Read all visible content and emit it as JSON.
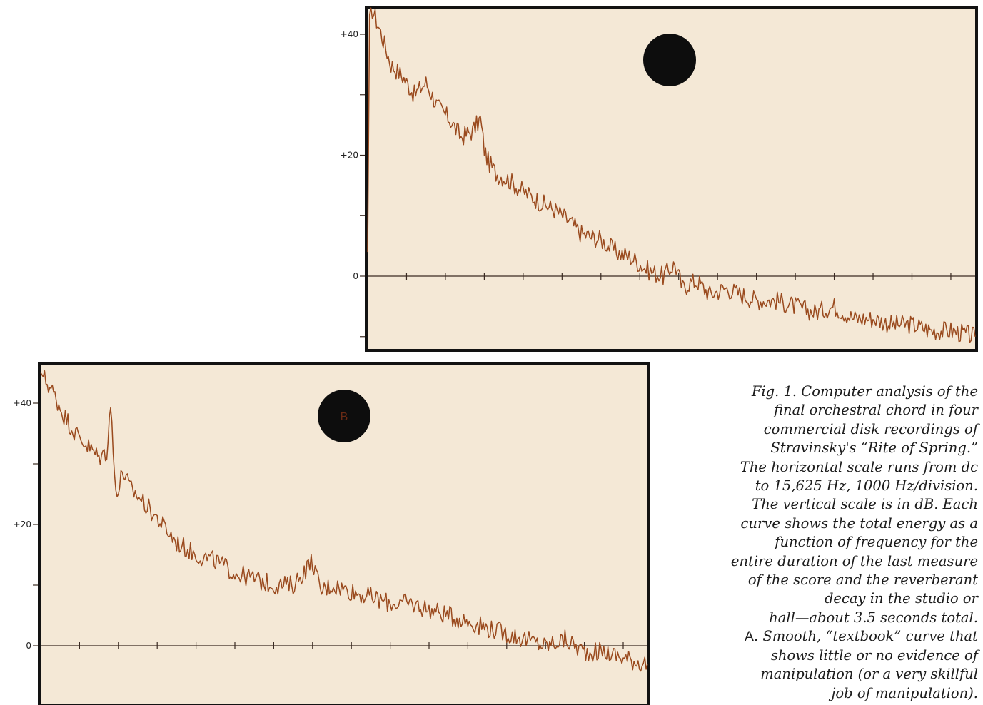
{
  "caption": {
    "lines": [
      "Fig. 1. Computer analysis of the",
      "final orchestral chord in four",
      "commercial disk recordings of",
      "Stravinsky's “Rite of Spring.”",
      "The horizontal scale runs from dc",
      "to 15,625 Hz, 1000 Hz/division.",
      "The vertical scale is in dB. Each",
      "curve shows the total energy as a",
      "function of frequency for the",
      "entire duration of the last measure",
      "of the score and the reverberant",
      "decay in the studio or",
      "hall—about 3.5 seconds total."
    ],
    "item_letter": "A",
    "item_text": ". Smooth, “textbook” curve that",
    "item_lines": [
      "shows little or no evidence of",
      "manipulation (or a very skillful",
      "job of manipulation)."
    ]
  },
  "colors": {
    "paper": "#f4e8d6",
    "trace": "#9a4a1e",
    "axis": "#3a2a22",
    "frame": "#121212",
    "disc": "#0d0d0d"
  },
  "chart_data": [
    {
      "type": "line",
      "badge": "",
      "xlabel": "",
      "ylabel": "",
      "xlim": [
        0,
        15625
      ],
      "ylim": [
        -12,
        45
      ],
      "x_tick_step": 1000,
      "y_ticks": [
        {
          "value": 40,
          "label": "+40"
        },
        {
          "value": 30,
          "label": ""
        },
        {
          "value": 20,
          "label": "+20"
        },
        {
          "value": 10,
          "label": ""
        },
        {
          "value": 0,
          "label": "0"
        },
        {
          "value": -10,
          "label": ""
        }
      ],
      "series": [
        {
          "x": [
            0,
            50,
            120,
            300,
            600,
            900,
            1200,
            1500,
            1800,
            2100,
            2400,
            2700,
            2900,
            3000,
            3100,
            3300,
            3600,
            4000,
            4500,
            4800,
            5200,
            5500,
            6000,
            6400,
            6800,
            7200,
            7600,
            7900,
            8100,
            8300,
            8500,
            8800,
            9200,
            9600,
            10000,
            10500,
            11000,
            11500,
            12000,
            12500,
            13000,
            13500,
            14000,
            14500,
            15000,
            15625
          ],
          "y": [
            4,
            42,
            44,
            41,
            35,
            33,
            30,
            32,
            28,
            26,
            23,
            24,
            26,
            21,
            19,
            17,
            16,
            14,
            12,
            11,
            9,
            7,
            6,
            4,
            3,
            1,
            0,
            2,
            -2,
            -1,
            -1,
            -3,
            -2,
            -3,
            -4,
            -4,
            -5,
            -6,
            -5,
            -7,
            -7,
            -8,
            -8,
            -9,
            -9,
            -10
          ]
        }
      ]
    },
    {
      "type": "line",
      "badge": "B",
      "xlabel": "",
      "ylabel": "",
      "xlim": [
        0,
        15625
      ],
      "ylim": [
        -12,
        45
      ],
      "x_tick_step": 1000,
      "y_ticks": [
        {
          "value": 40,
          "label": "+40"
        },
        {
          "value": 30,
          "label": ""
        },
        {
          "value": 20,
          "label": "+20"
        },
        {
          "value": 10,
          "label": ""
        },
        {
          "value": 0,
          "label": "0"
        },
        {
          "value": -10,
          "label": ""
        }
      ],
      "series": [
        {
          "x": [
            0,
            100,
            300,
            600,
            900,
            1200,
            1500,
            1700,
            1800,
            1900,
            2000,
            2100,
            2300,
            2600,
            3000,
            3500,
            4000,
            4500,
            5000,
            5500,
            6000,
            6500,
            7000,
            7200,
            7500,
            8000,
            8500,
            9000,
            9500,
            10000,
            10500,
            11000,
            11500,
            12000,
            12500,
            13000,
            13500,
            14000,
            14500,
            15000,
            15625
          ],
          "y": [
            45,
            44,
            42,
            38,
            35,
            33,
            31,
            32,
            40,
            28,
            25,
            29,
            26,
            24,
            21,
            17,
            15,
            14,
            12,
            11,
            10,
            10,
            14,
            9,
            10,
            9,
            8,
            7,
            7,
            6,
            5,
            4,
            3,
            2,
            1,
            0,
            1,
            -1,
            -1,
            -2,
            -3
          ]
        }
      ]
    }
  ]
}
